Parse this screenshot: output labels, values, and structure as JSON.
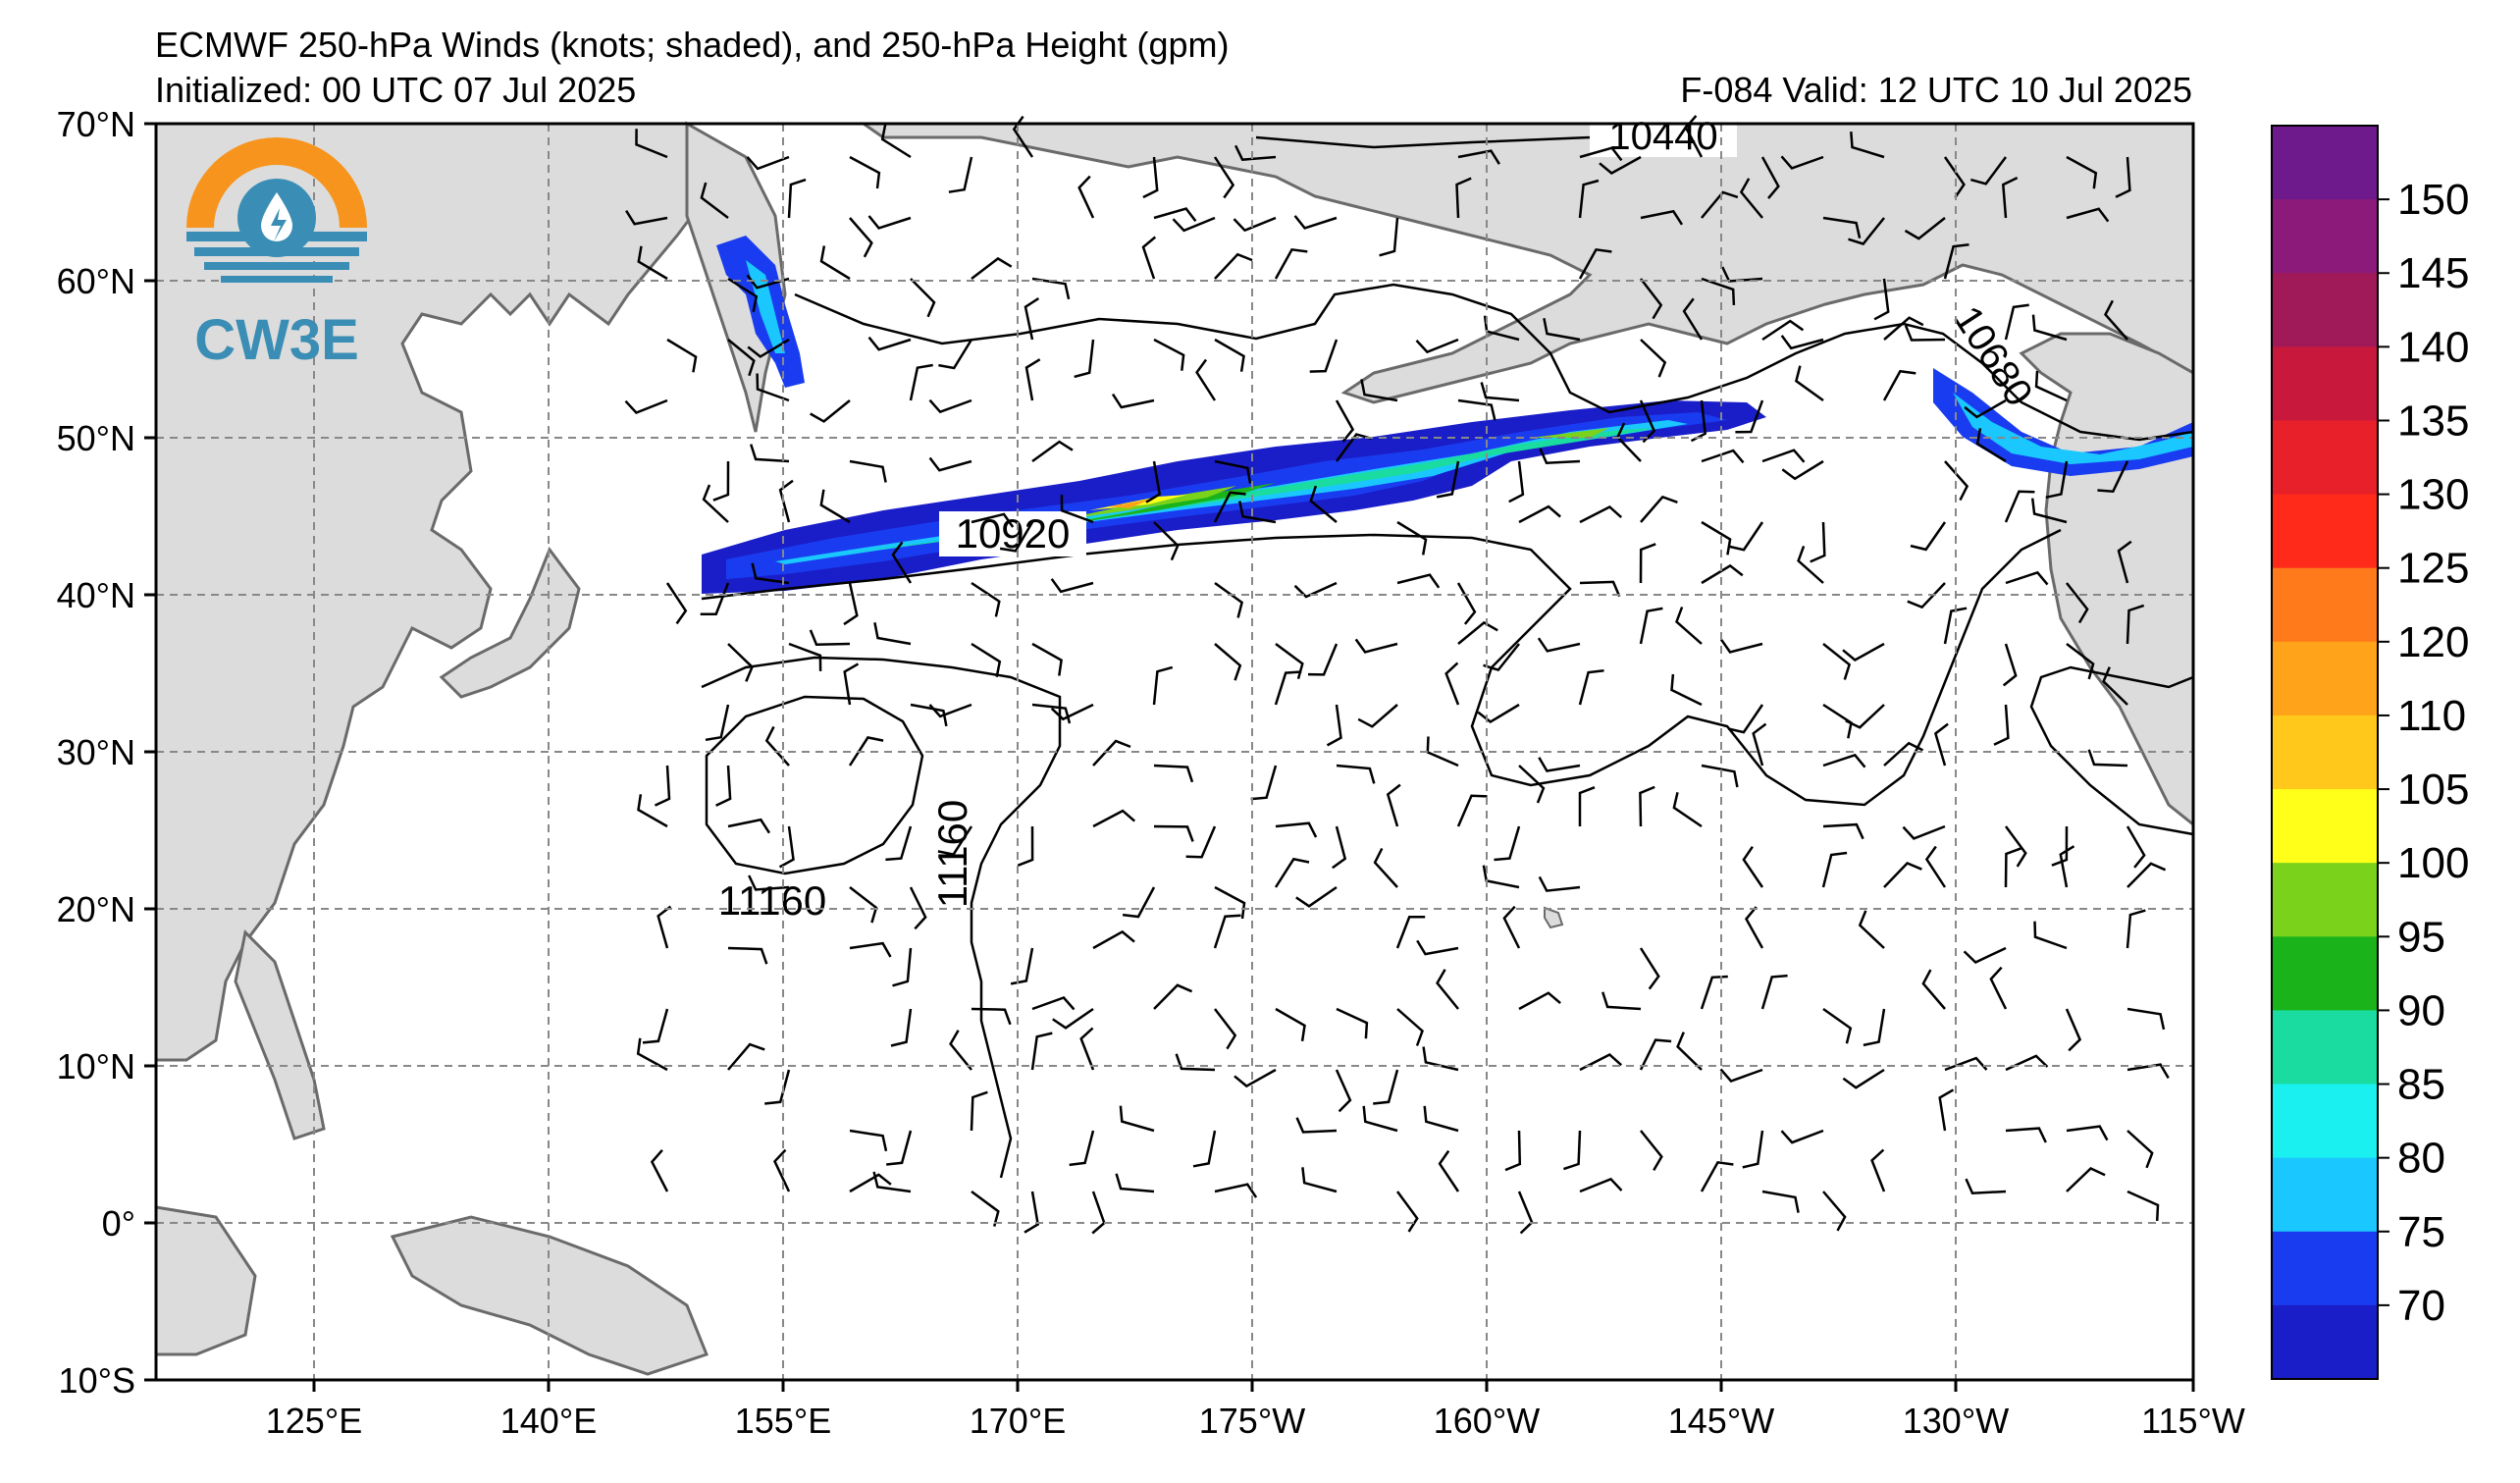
{
  "title": {
    "line1": "ECMWF 250-hPa Winds (knots; shaded), and 250-hPa Height (gpm)",
    "line2_left": "Initialized: 00 UTC 07 Jul 2025",
    "line2_right": "F-084  Valid: 12 UTC 10 Jul 2025"
  },
  "logo": {
    "text": "CW3E",
    "icon": "water-drop-sun-logo-icon"
  },
  "map": {
    "lat_labels": [
      "70°N",
      "60°N",
      "50°N",
      "40°N",
      "30°N",
      "20°N",
      "10°N",
      "0°",
      "10°S"
    ],
    "lon_labels": [
      "125°E",
      "140°E",
      "155°E",
      "170°E",
      "175°W",
      "160°W",
      "145°W",
      "130°W",
      "115°W"
    ],
    "contour_labels": [
      "10440",
      "10920",
      "10680",
      "11160",
      "11160"
    ]
  },
  "colorbar": {
    "ticks": [
      "150",
      "145",
      "140",
      "135",
      "130",
      "125",
      "120",
      "110",
      "105",
      "100",
      "95",
      "90",
      "85",
      "80",
      "75",
      "70"
    ],
    "colors": [
      "#6e1a8c",
      "#8c1a7a",
      "#a01a5a",
      "#c8183c",
      "#e8202a",
      "#ff2a1a",
      "#ff7a1a",
      "#ffa41a",
      "#ffc81a",
      "#ffff1a",
      "#7ad21a",
      "#1ab41a",
      "#1adca0",
      "#1af0f0",
      "#1ac8ff",
      "#1a3cf0",
      "#1a1ec8"
    ]
  }
}
